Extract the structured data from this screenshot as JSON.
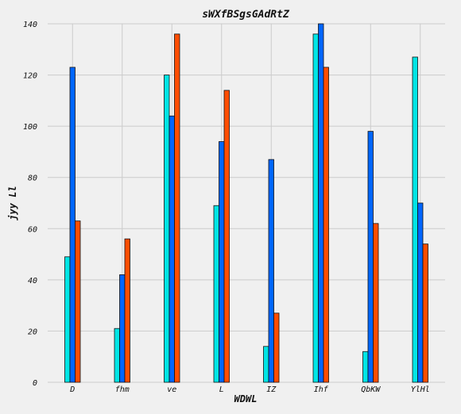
{
  "chart_data": {
    "type": "bar",
    "title": "sWXfBSgsGAdRtZ",
    "xlabel": "WDWL",
    "ylabel": "jyy Ll",
    "categories": [
      "D",
      "fhm",
      "ve",
      "L",
      "IZ",
      "Ihf",
      "QbKW",
      "YlHl"
    ],
    "series": [
      {
        "values": [
          49,
          21,
          120,
          69,
          14,
          136,
          12,
          127
        ],
        "color": "#00e5e5"
      },
      {
        "values": [
          123,
          42,
          104,
          94,
          87,
          140,
          98,
          70
        ],
        "color": "#0066ff"
      },
      {
        "values": [
          63,
          56,
          136,
          114,
          27,
          123,
          62,
          54
        ],
        "color": "#ff4d00"
      }
    ],
    "ylim": [
      0,
      140
    ],
    "yticks": [
      0,
      20,
      40,
      60,
      80,
      100,
      120,
      140
    ],
    "grid": true
  }
}
